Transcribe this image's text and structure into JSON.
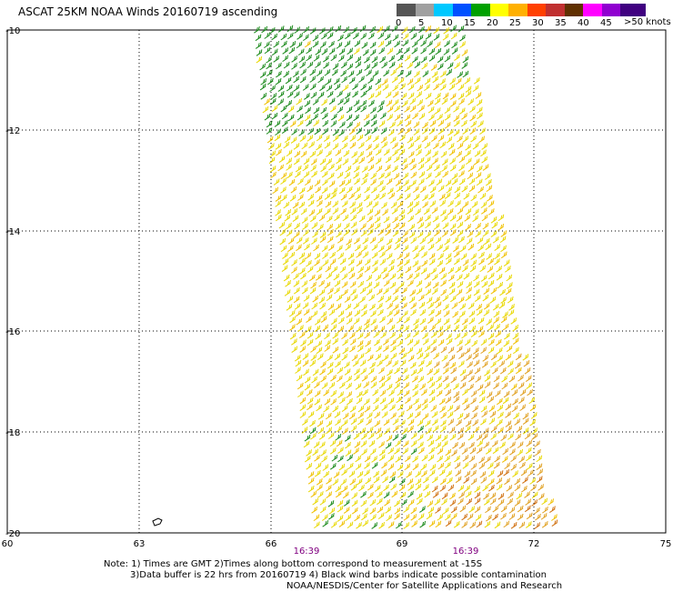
{
  "title": "ASCAT 25KM NOAA Winds 20160719 ascending",
  "scale": {
    "labels": [
      "0",
      "5",
      "10",
      "15",
      "20",
      "25",
      "30",
      "35",
      "40",
      "45"
    ],
    "unit": ">50 knots",
    "colors": [
      "#555555",
      "#a0a0a0",
      "#00c8ff",
      "#0050ff",
      "#00a000",
      "#ffff00",
      "#ffb000",
      "#ff4000",
      "#c03030",
      "#603000",
      "#ff00ff",
      "#9000d0",
      "#400080"
    ]
  },
  "map": {
    "x_ticks": [
      "60",
      "63",
      "66",
      "69",
      "72",
      "75"
    ],
    "y_ticks": [
      "-10",
      "-12",
      "-14",
      "-16",
      "-18",
      "-20"
    ],
    "times": [
      "16:39",
      "16:39"
    ]
  },
  "notes": {
    "line1": "Note: 1) Times are GMT 2)Times along bottom correspond to measurement at -15S",
    "line2": "3)Data buffer is 22 hrs from 20160719 4) Black wind barbs indicate possible contamination",
    "line3": "NOAA/NESDIS/Center for Satellite Applications and Research"
  }
}
